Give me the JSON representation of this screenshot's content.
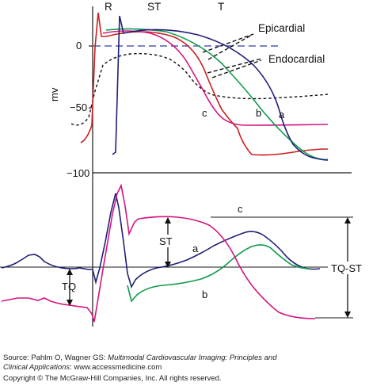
{
  "diagram": {
    "labels": {
      "R": "R",
      "ST_top": "ST",
      "T": "T",
      "epicardial": "Epicardial",
      "endocardial": "Endocardial",
      "mv": "mv",
      "tick_0": "0",
      "tick_m50": "−50",
      "tick_m100": "−100",
      "a_top": "a",
      "b_top": "b",
      "c_top": "c",
      "c_bottom": "c",
      "ST_bottom": "ST",
      "a_bottom": "a",
      "b_bottom": "b",
      "TQ": "TQ",
      "TQ_ST": "TQ-ST"
    },
    "colors": {
      "curve_a": "#1f1f7a",
      "curve_b": "#119b4a",
      "curve_c": "#d4147f",
      "curve_red": "#cc1f1f",
      "axis": "#1a1a1a",
      "dash_blue": "#2d3aa8"
    }
  },
  "footer": {
    "source_prefix": "Source: Pahlm O, Wagner GS: ",
    "source_title": "Multimodal Cardiovascular Imaging: Principles and",
    "source_title2": "Clinical Applications",
    "source_suffix": ": www.accessmedicine.com",
    "copyright": "Copyright © The McGraw-Hill Companies, Inc. All rights reserved."
  }
}
